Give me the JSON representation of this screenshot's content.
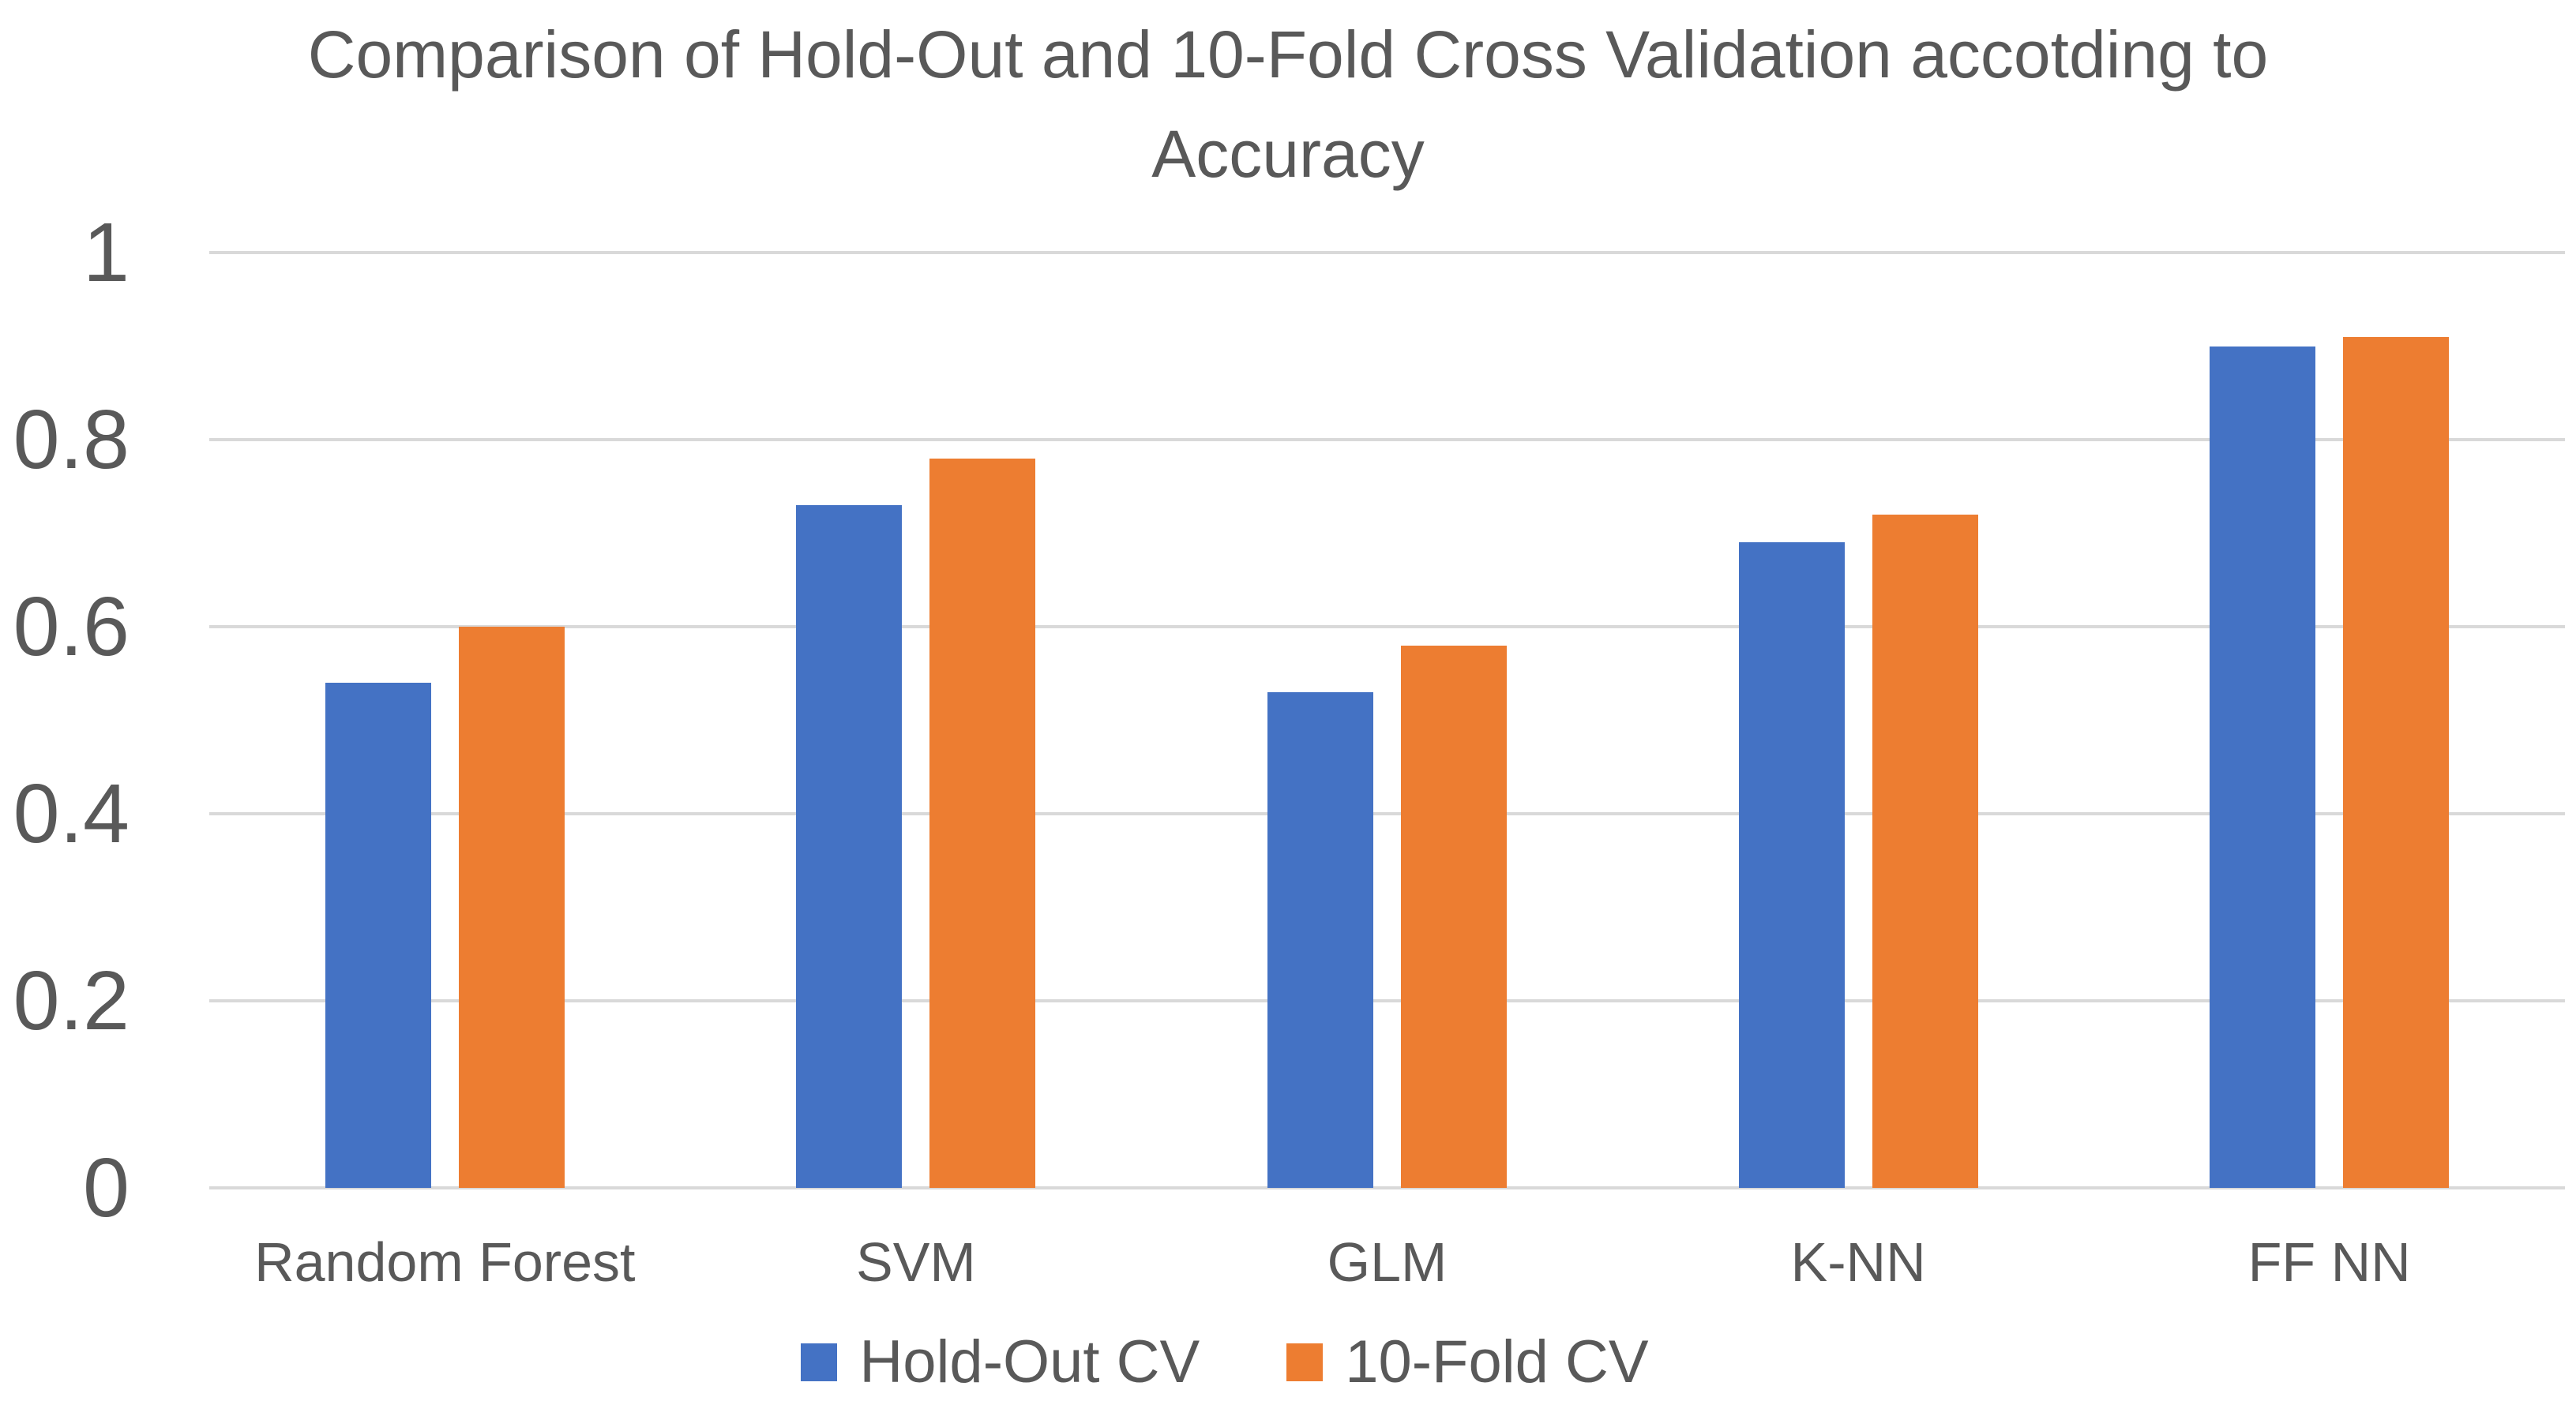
{
  "chart_data": {
    "type": "bar",
    "title": "Comparison of Hold-Out and 10-Fold Cross Validation accotding to Accuracy",
    "title_lines": [
      "Comparison of Hold-Out and 10-Fold Cross Validation accotding to",
      "Accuracy"
    ],
    "categories": [
      "Random Forest",
      "SVM",
      "GLM",
      "K-NN",
      "FF NN"
    ],
    "series": [
      {
        "name": "Hold-Out CV",
        "color": "#4472C4",
        "values": [
          0.54,
          0.73,
          0.53,
          0.69,
          0.9
        ]
      },
      {
        "name": "10-Fold CV",
        "color": "#ED7D31",
        "values": [
          0.6,
          0.78,
          0.58,
          0.72,
          0.91
        ]
      }
    ],
    "ylim": [
      0,
      1
    ],
    "yticks": [
      "1",
      "0.8",
      "0.6",
      "0.4",
      "0.2",
      "0"
    ],
    "ytick_values": [
      1,
      0.8,
      0.6,
      0.4,
      0.2,
      0
    ],
    "grid": true,
    "gridline_color": "#D9D9D9",
    "text_color": "#595959",
    "background_color": "#FFFFFF",
    "legend_position": "bottom"
  }
}
